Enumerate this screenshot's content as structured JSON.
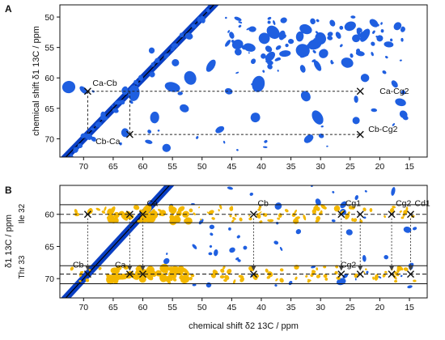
{
  "chart_data": [
    {
      "panel": "A",
      "type": "heatmap",
      "title": "",
      "xlabel": "",
      "ylabel": "chemical shift δ1 13C / ppm",
      "xlim": [
        74,
        12
      ],
      "ylim": [
        48,
        73
      ],
      "x_ticks": [
        70,
        65,
        60,
        55,
        50,
        45,
        40,
        35,
        30,
        25,
        20,
        15
      ],
      "y_ticks": [
        50,
        55,
        60,
        65,
        70
      ],
      "grid": false,
      "colors": {
        "spectrum": "#1f5fe0",
        "diagonal": "#0a3fc4",
        "guides": "#222222"
      },
      "marked_peaks": [
        {
          "label": "Ca-Cb",
          "x": 69.3,
          "y": 62.2
        },
        {
          "label": "Cb-Ca",
          "x": 62.2,
          "y": 69.3
        },
        {
          "label": "Ca-Cg2",
          "x": 23.3,
          "y": 62.2
        },
        {
          "label": "Cb-Cg2",
          "x": 23.3,
          "y": 69.3
        }
      ],
      "connectors": [
        {
          "from": [
            69.3,
            62.2
          ],
          "to": [
            23.3,
            62.2
          ]
        },
        {
          "from": [
            62.2,
            69.3
          ],
          "to": [
            23.3,
            69.3
          ]
        },
        {
          "from": [
            69.3,
            62.2
          ],
          "to": [
            69.3,
            69.3
          ]
        },
        {
          "from": [
            62.2,
            62.2
          ],
          "to": [
            62.2,
            69.3
          ]
        }
      ],
      "peaks": [
        {
          "x": 41.5,
          "y": 52.0
        },
        {
          "x": 39.5,
          "y": 53.5
        },
        {
          "x": 38.0,
          "y": 52.5
        },
        {
          "x": 36.5,
          "y": 53.0
        },
        {
          "x": 35.0,
          "y": 54.0
        },
        {
          "x": 33.5,
          "y": 53.2
        },
        {
          "x": 32.5,
          "y": 52.0
        },
        {
          "x": 31.0,
          "y": 54.5
        },
        {
          "x": 30.0,
          "y": 53.5
        },
        {
          "x": 29.5,
          "y": 56.0
        },
        {
          "x": 33.0,
          "y": 55.5
        },
        {
          "x": 36.0,
          "y": 56.0
        },
        {
          "x": 38.5,
          "y": 56.5
        },
        {
          "x": 25.0,
          "y": 51.5
        },
        {
          "x": 24.0,
          "y": 53.5
        },
        {
          "x": 22.5,
          "y": 53.0
        },
        {
          "x": 20.0,
          "y": 53.5
        },
        {
          "x": 18.5,
          "y": 54.5
        },
        {
          "x": 17.0,
          "y": 51.5
        },
        {
          "x": 25.5,
          "y": 57.5
        },
        {
          "x": 30.5,
          "y": 58.0
        },
        {
          "x": 42.0,
          "y": 55.0
        },
        {
          "x": 33.0,
          "y": 58.5
        },
        {
          "x": 23.3,
          "y": 56.0
        },
        {
          "x": 44.0,
          "y": 54.5
        },
        {
          "x": 45.0,
          "y": 53.0
        },
        {
          "x": 28.0,
          "y": 51.0
        },
        {
          "x": 27.0,
          "y": 53.0
        },
        {
          "x": 21.0,
          "y": 51.0
        },
        {
          "x": 52.0,
          "y": 60.0
        },
        {
          "x": 55.0,
          "y": 61.5
        },
        {
          "x": 45.5,
          "y": 62.2
        },
        {
          "x": 32.5,
          "y": 63.0
        },
        {
          "x": 32.0,
          "y": 70.0
        },
        {
          "x": 41.0,
          "y": 66.5
        },
        {
          "x": 30.5,
          "y": 66.5
        },
        {
          "x": 53.0,
          "y": 65.0
        },
        {
          "x": 58.0,
          "y": 66.5
        },
        {
          "x": 16.5,
          "y": 64.0
        },
        {
          "x": 16.0,
          "y": 66.0
        },
        {
          "x": 72.5,
          "y": 61.5
        },
        {
          "x": 70.0,
          "y": 62.0
        },
        {
          "x": 63.0,
          "y": 62.3
        },
        {
          "x": 61.5,
          "y": 62.5
        },
        {
          "x": 24.0,
          "y": 63.5
        },
        {
          "x": 24.0,
          "y": 67.0
        },
        {
          "x": 63.0,
          "y": 69.0
        },
        {
          "x": 70.0,
          "y": 69.5
        },
        {
          "x": 59.0,
          "y": 70.5
        },
        {
          "x": 56.0,
          "y": 71.5
        },
        {
          "x": 47.0,
          "y": 68.5
        },
        {
          "x": 40.5,
          "y": 61.0
        },
        {
          "x": 22.5,
          "y": 60.0
        },
        {
          "x": 17.5,
          "y": 61.0
        },
        {
          "x": 48.5,
          "y": 58.0
        },
        {
          "x": 54.5,
          "y": 57.5
        },
        {
          "x": 58.5,
          "y": 55.5
        }
      ]
    },
    {
      "panel": "B",
      "type": "heatmap",
      "title": "",
      "xlabel": "chemical shift δ2 13C / ppm",
      "ylabel": "δ1 13C / ppm",
      "row_labels": [
        "Ile 32",
        "Thr 33"
      ],
      "xlim": [
        74,
        12
      ],
      "ylim": [
        55.5,
        73
      ],
      "x_ticks": [
        70,
        65,
        60,
        55,
        50,
        45,
        40,
        35,
        30,
        25,
        20,
        15
      ],
      "y_ticks": [
        60,
        65,
        70
      ],
      "grid": false,
      "colors": {
        "strip": "#f3b700",
        "background": "#1f5fe0",
        "diagonal": "#0a3fc4",
        "guides": "#222222"
      },
      "strips": [
        {
          "name": "Ile 32",
          "y": 60.0,
          "y_range": [
            58.5,
            61.3
          ]
        },
        {
          "name": "Thr 33",
          "y": 69.3,
          "y_range": [
            68.0,
            70.8
          ]
        }
      ],
      "ile_peaks": [
        {
          "label": "Ca",
          "x": 60.0,
          "y": 60.0
        },
        {
          "label": "Cb",
          "x": 41.3,
          "y": 60.0
        },
        {
          "label": "Cg1",
          "x": 26.5,
          "y": 60.0
        },
        {
          "label": "",
          "x": 23.3,
          "y": 60.0
        },
        {
          "label": "Cg2",
          "x": 18.0,
          "y": 60.0
        },
        {
          "label": "Cd1",
          "x": 14.8,
          "y": 60.0
        },
        {
          "label": "",
          "x": 69.3,
          "y": 60.0
        },
        {
          "label": "",
          "x": 62.2,
          "y": 60.0
        }
      ],
      "thr_peaks": [
        {
          "label": "Cb",
          "x": 69.3,
          "y": 69.3
        },
        {
          "label": "Ca",
          "x": 62.2,
          "y": 69.3
        },
        {
          "label": "",
          "x": 60.0,
          "y": 69.3
        },
        {
          "label": "",
          "x": 41.3,
          "y": 69.3
        },
        {
          "label": "",
          "x": 26.5,
          "y": 69.3
        },
        {
          "label": "Cg2",
          "x": 23.3,
          "y": 69.3
        },
        {
          "label": "",
          "x": 18.0,
          "y": 69.3
        },
        {
          "label": "",
          "x": 14.8,
          "y": 69.3
        }
      ],
      "arrows_x": [
        69.3,
        62.2,
        60.0,
        41.3,
        26.5,
        23.3,
        18.0,
        14.8
      ]
    }
  ]
}
